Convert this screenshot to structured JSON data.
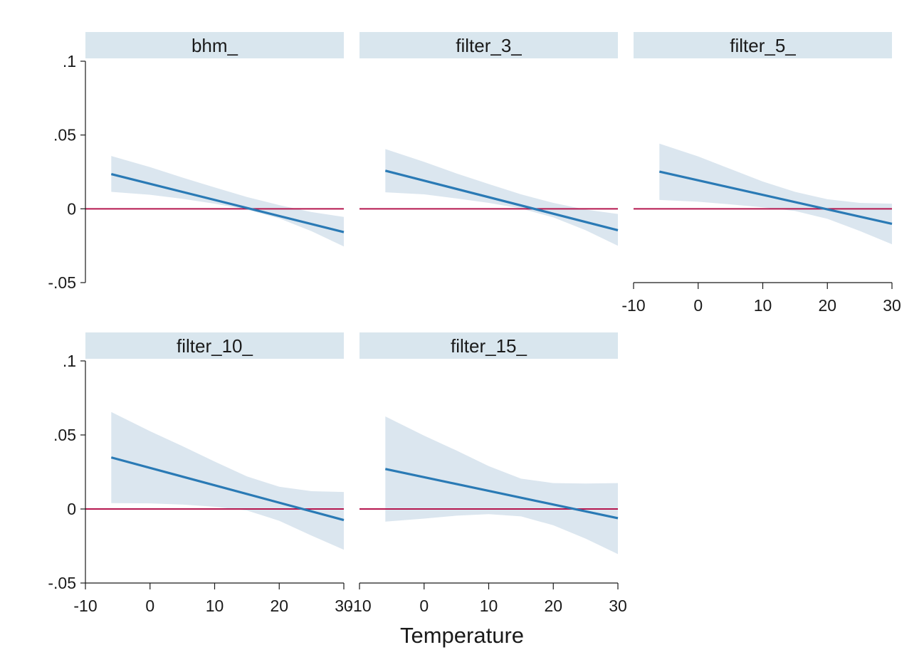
{
  "chart_data": {
    "type": "line",
    "xlabel": "Temperature",
    "xlim": [
      -10,
      30
    ],
    "ylim": [
      -0.05,
      0.1
    ],
    "xticks": [
      -10,
      0,
      10,
      20,
      30
    ],
    "xtick_labels": [
      "-10",
      "0",
      "10",
      "20",
      "30"
    ],
    "yticks": [
      -0.05,
      0,
      0.05,
      0.1
    ],
    "ytick_labels": [
      "-.05",
      "0",
      ".05",
      ".1"
    ],
    "grid": false,
    "colors": {
      "estimate_line": "#2a7ab5",
      "confidence_band": "#dbe6ef",
      "zero_line": "#b5174f",
      "strip": "#d9e6ee"
    },
    "panels": [
      {
        "title": "bhm_",
        "x": [
          -6,
          30
        ],
        "y": [
          0.0235,
          -0.0158
        ],
        "ci_x": [
          -6,
          0,
          5,
          10,
          15,
          20,
          25,
          30
        ],
        "ci_lower": [
          0.0115,
          0.0095,
          0.0068,
          0.0035,
          -0.0005,
          -0.0065,
          -0.0152,
          -0.0255
        ],
        "ci_upper": [
          0.0358,
          0.0283,
          0.0212,
          0.0145,
          0.008,
          0.0025,
          -0.0022,
          -0.0055
        ]
      },
      {
        "title": "filter_3_",
        "x": [
          -6,
          30
        ],
        "y": [
          0.0258,
          -0.0145
        ],
        "ci_x": [
          -6,
          0,
          5,
          10,
          15,
          20,
          25,
          30
        ],
        "ci_lower": [
          0.0112,
          0.0098,
          0.007,
          0.004,
          0.0002,
          -0.0058,
          -0.0145,
          -0.025
        ],
        "ci_upper": [
          0.0405,
          0.0318,
          0.024,
          0.0168,
          0.0098,
          0.004,
          -0.0005,
          -0.0035
        ]
      },
      {
        "title": "filter_5_",
        "x": [
          -6,
          30
        ],
        "y": [
          0.0252,
          -0.0102
        ],
        "ci_x": [
          -6,
          0,
          5,
          10,
          15,
          20,
          25,
          30
        ],
        "ci_lower": [
          0.006,
          0.0048,
          0.003,
          0.001,
          -0.0015,
          -0.0068,
          -0.015,
          -0.024
        ],
        "ci_upper": [
          0.0442,
          0.0355,
          0.027,
          0.0185,
          0.0115,
          0.0065,
          0.004,
          0.0035
        ]
      },
      {
        "title": "filter_10_",
        "x": [
          -6,
          30
        ],
        "y": [
          0.0348,
          -0.0075
        ],
        "ci_x": [
          -6,
          0,
          5,
          10,
          15,
          20,
          25,
          30
        ],
        "ci_lower": [
          0.004,
          0.0038,
          0.003,
          0.0015,
          -0.001,
          -0.008,
          -0.018,
          -0.0275
        ],
        "ci_upper": [
          0.0655,
          0.0525,
          0.0425,
          0.032,
          0.022,
          0.015,
          0.012,
          0.0115
        ]
      },
      {
        "title": "filter_15_",
        "x": [
          -6,
          30
        ],
        "y": [
          0.027,
          -0.0062
        ],
        "ci_x": [
          -6,
          0,
          5,
          10,
          15,
          20,
          25,
          30
        ],
        "ci_lower": [
          -0.0085,
          -0.0065,
          -0.0045,
          -0.0035,
          -0.005,
          -0.011,
          -0.02,
          -0.0305
        ],
        "ci_upper": [
          0.0625,
          0.0495,
          0.0395,
          0.029,
          0.0205,
          0.0175,
          0.0172,
          0.0175
        ]
      }
    ]
  }
}
